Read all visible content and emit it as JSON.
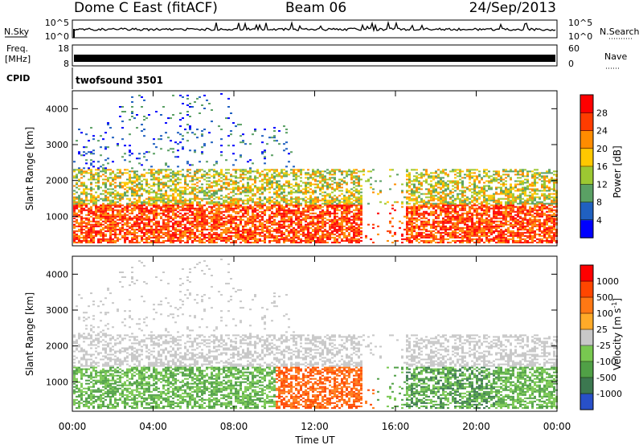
{
  "header": {
    "radar": "Dome C East (fitACF)",
    "beam": "Beam 06",
    "date": "24/Sep/2013"
  },
  "noise_panel": {
    "left_label": "N.Sky",
    "right_label": "N.Search",
    "left_ticks": [
      "10^5",
      "10^0"
    ],
    "right_ticks": [
      "10^5",
      "10^0"
    ]
  },
  "freq_panel": {
    "left_label_1": "Freq.",
    "left_label_2": "[MHz]",
    "right_label": "Nave",
    "left_ticks": [
      "18",
      "8"
    ],
    "right_ticks": [
      "60",
      "0"
    ]
  },
  "cpid": {
    "label": "CPID",
    "value": "twofsound 3501"
  },
  "chart_data": [
    {
      "type": "heatmap",
      "quantity": "power",
      "ylabel": "Slant Range [km]",
      "ylim": [
        180,
        4500
      ],
      "yticks": [
        "1000",
        "2000",
        "3000",
        "4000"
      ],
      "xlim": [
        "00:00",
        "24:00"
      ],
      "colorbar": {
        "label": "Power [dB]",
        "ticks": [
          "28",
          "24",
          "20",
          "16",
          "12",
          "8",
          "4"
        ],
        "colors": [
          "#0000ff",
          "#2060c0",
          "#5aa064",
          "#9cc832",
          "#ffc800",
          "#ff8c00",
          "#ff3c00",
          "#ff0000"
        ]
      }
    },
    {
      "type": "heatmap",
      "quantity": "velocity",
      "ylabel": "Slant Range [km]",
      "ylim": [
        180,
        4500
      ],
      "yticks": [
        "1000",
        "2000",
        "3000",
        "4000"
      ],
      "xlim": [
        "00:00",
        "24:00"
      ],
      "colorbar": {
        "label": "Velocity [m s",
        "label_superscript": "-1",
        "label_close": "]",
        "ticks": [
          "1000",
          "500",
          "100",
          "25",
          "-25",
          "-100",
          "-500",
          "-1000"
        ],
        "colors": [
          "#2850c8",
          "#3c7850",
          "#50a046",
          "#78c850",
          "#c8c8c8",
          "#ffaa28",
          "#ff7814",
          "#ff4600",
          "#ff0000"
        ]
      }
    }
  ],
  "xaxis": {
    "ticks": [
      "00:00",
      "04:00",
      "08:00",
      "12:00",
      "16:00",
      "20:00",
      "00:00"
    ],
    "label": "Time UT"
  }
}
